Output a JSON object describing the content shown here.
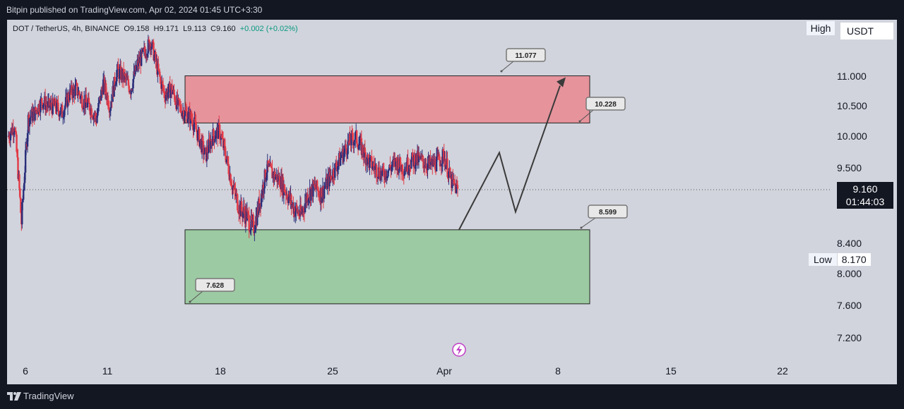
{
  "header": {
    "publish_text": "Bitpin published on TradingView.com, Apr 02, 2024 01:45 UTC+3:30"
  },
  "legend": {
    "symbol": "DOT / TetherUS, 4h, BINANCE",
    "open": "O9.158",
    "high": "H9.171",
    "low": "L9.113",
    "close": "C9.160",
    "change": "+0.002 (+0.02%)"
  },
  "toolbar": {
    "high_label": "High",
    "currency_label": "USDT"
  },
  "price_axis": {
    "labels": [
      "11.000",
      "10.500",
      "10.000",
      "9.500",
      "8.400",
      "8.000",
      "7.600",
      "7.200"
    ]
  },
  "current_price": {
    "value": "9.160",
    "countdown": "01:44:03"
  },
  "low_marker": {
    "label": "Low",
    "value": "8.170"
  },
  "time_axis": {
    "labels": [
      "6",
      "11",
      "18",
      "25",
      "Apr",
      "8",
      "15",
      "22"
    ]
  },
  "footer": {
    "brand": "TradingView"
  },
  "chart_data": {
    "type": "candlestick",
    "symbol": "DOT / TetherUS",
    "interval": "4h",
    "exchange": "BINANCE",
    "last_price": 9.16,
    "zones": [
      {
        "name": "resistance",
        "top": 11.077,
        "bottom": 10.228,
        "color": "#f18a94"
      },
      {
        "name": "support",
        "top": 8.599,
        "bottom": 7.628,
        "color": "#7ac68c"
      }
    ],
    "annotations": [
      "11.077",
      "10.228",
      "8.599",
      "7.628"
    ],
    "projected_path": [
      8.6,
      9.75,
      8.85,
      10.85
    ],
    "colors": {
      "up": "#2a2e7a",
      "down": "#e33a46",
      "background": "#d1d4dc"
    },
    "close_path": [
      10.0,
      10.2,
      8.7,
      10.3,
      10.4,
      10.6,
      10.5,
      10.5,
      10.4,
      10.7,
      10.8,
      10.6,
      10.5,
      10.3,
      10.9,
      10.5,
      11.1,
      11.0,
      10.8,
      11.2,
      11.4,
      11.6,
      11.1,
      10.7,
      10.8,
      10.5,
      10.4,
      10.3,
      10.0,
      9.7,
      10.0,
      10.1,
      9.7,
      9.2,
      8.9,
      8.8,
      8.6,
      9.0,
      9.5,
      9.4,
      9.3,
      9.1,
      8.9,
      8.8,
      9.1,
      9.2,
      9.1,
      9.3,
      9.5,
      9.7,
      9.9,
      10.0,
      9.8,
      9.6,
      9.5,
      9.4,
      9.5,
      9.6,
      9.5,
      9.6,
      9.65,
      9.6,
      9.55,
      9.6,
      9.7,
      9.3,
      9.16
    ]
  }
}
